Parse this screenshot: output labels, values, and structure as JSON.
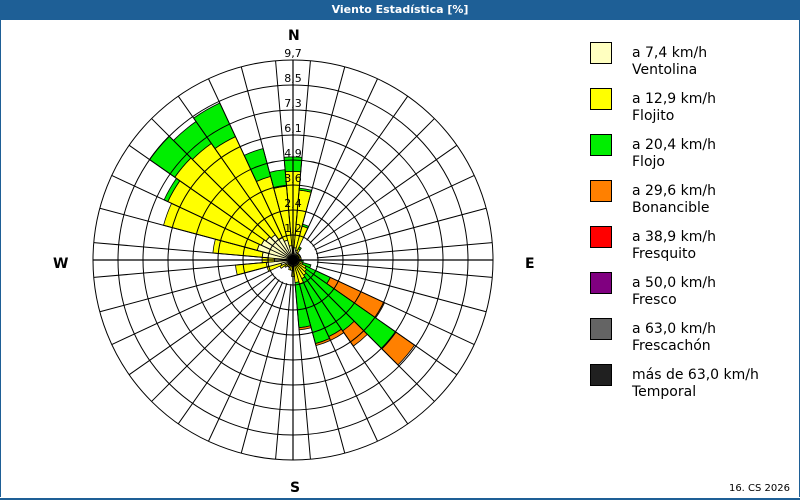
{
  "title": "Viento Estadística [%]",
  "footer": "16. CS 2026",
  "cardinals": {
    "n": "N",
    "e": "E",
    "s": "S",
    "w": "W"
  },
  "chart_data": {
    "type": "polar-bar",
    "title": "Viento Estadística [%]",
    "rmax": 9.7,
    "ring_labels": [
      "1,2",
      "2,4",
      "3,6",
      "4,9",
      "6,1",
      "7,3",
      "8,5",
      "9,7"
    ],
    "sector_width_deg": 10,
    "series_names": [
      "Ventolina",
      "Flojito",
      "Flojo",
      "Bonancible",
      "Fresquito",
      "Fresco",
      "Frescachón",
      "Temporal"
    ],
    "petals": [
      {
        "dir": 0,
        "cum": [
          0.6,
          4.3,
          5.0,
          5.0
        ]
      },
      {
        "dir": 10,
        "cum": [
          0.6,
          3.4,
          3.5,
          3.5
        ]
      },
      {
        "dir": 20,
        "cum": [
          0.5,
          1.7,
          1.8,
          1.8
        ]
      },
      {
        "dir": 30,
        "cum": [
          0.4,
          0.6,
          0.7,
          0.7
        ]
      },
      {
        "dir": 40,
        "cum": [
          0.3,
          0.4,
          0.4,
          0.4
        ]
      },
      {
        "dir": 50,
        "cum": [
          0.3,
          0.4,
          0.4,
          0.4
        ]
      },
      {
        "dir": 60,
        "cum": [
          0.3,
          0.4,
          0.4,
          0.4
        ]
      },
      {
        "dir": 70,
        "cum": [
          0.3,
          0.4,
          0.4,
          0.4
        ]
      },
      {
        "dir": 80,
        "cum": [
          0.3,
          0.4,
          0.4,
          0.4
        ]
      },
      {
        "dir": 90,
        "cum": [
          0.3,
          0.4,
          0.4,
          0.4
        ]
      },
      {
        "dir": 100,
        "cum": [
          0.3,
          0.4,
          0.5,
          0.5
        ]
      },
      {
        "dir": 110,
        "cum": [
          0.3,
          0.5,
          0.9,
          0.9
        ]
      },
      {
        "dir": 120,
        "cum": [
          0.3,
          0.7,
          2.0,
          4.9
        ]
      },
      {
        "dir": 130,
        "cum": [
          0.3,
          0.8,
          6.1,
          7.2
        ]
      },
      {
        "dir": 140,
        "cum": [
          0.3,
          0.9,
          4.2,
          5.1
        ]
      },
      {
        "dir": 150,
        "cum": [
          0.3,
          1.0,
          4.1,
          4.3
        ]
      },
      {
        "dir": 160,
        "cum": [
          0.3,
          1.2,
          4.2,
          4.3
        ]
      },
      {
        "dir": 170,
        "cum": [
          0.3,
          1.1,
          3.3,
          3.4
        ]
      },
      {
        "dir": 180,
        "cum": [
          0.3,
          0.8,
          0.8,
          0.8
        ]
      },
      {
        "dir": 190,
        "cum": [
          0.3,
          0.5,
          0.5,
          0.5
        ]
      },
      {
        "dir": 200,
        "cum": [
          0.3,
          0.5,
          0.5,
          0.5
        ]
      },
      {
        "dir": 210,
        "cum": [
          0.3,
          0.4,
          0.4,
          0.4
        ]
      },
      {
        "dir": 220,
        "cum": [
          0.3,
          0.4,
          0.4,
          0.4
        ]
      },
      {
        "dir": 230,
        "cum": [
          0.3,
          0.5,
          0.5,
          0.5
        ]
      },
      {
        "dir": 240,
        "cum": [
          0.4,
          0.7,
          0.7,
          0.7
        ]
      },
      {
        "dir": 250,
        "cum": [
          0.6,
          1.3,
          1.3,
          1.3
        ]
      },
      {
        "dir": 260,
        "cum": [
          1.3,
          2.8,
          2.8,
          2.8
        ]
      },
      {
        "dir": 270,
        "cum": [
          0.9,
          1.5,
          1.5,
          1.5
        ]
      },
      {
        "dir": 280,
        "cum": [
          1.5,
          3.9,
          3.9,
          3.9
        ]
      },
      {
        "dir": 290,
        "cum": [
          1.8,
          6.5,
          6.5,
          6.5
        ]
      },
      {
        "dir": 300,
        "cum": [
          1.7,
          6.7,
          6.9,
          6.9
        ]
      },
      {
        "dir": 310,
        "cum": [
          1.6,
          7.0,
          8.5,
          8.5
        ]
      },
      {
        "dir": 320,
        "cum": [
          1.5,
          6.9,
          8.2,
          8.2
        ]
      },
      {
        "dir": 330,
        "cum": [
          1.2,
          6.6,
          8.4,
          8.4
        ]
      },
      {
        "dir": 340,
        "cum": [
          1.0,
          4.2,
          5.6,
          5.6
        ]
      },
      {
        "dir": 350,
        "cum": [
          0.7,
          3.6,
          4.4,
          4.4
        ]
      }
    ]
  },
  "legend": [
    {
      "range": "a 7,4 km/h",
      "name": "Ventolina",
      "color": "#ffffc0"
    },
    {
      "range": "a 12,9 km/h",
      "name": "Flojito",
      "color": "#ffff00"
    },
    {
      "range": "a 20,4 km/h",
      "name": "Flojo",
      "color": "#00ee00"
    },
    {
      "range": "a 29,6 km/h",
      "name": "Bonancible",
      "color": "#ff8000"
    },
    {
      "range": "a 38,9 km/h",
      "name": "Fresquito",
      "color": "#ff0000"
    },
    {
      "range": "a 50,0 km/h",
      "name": "Fresco",
      "color": "#800080"
    },
    {
      "range": "a 63,0 km/h",
      "name": "Frescachón",
      "color": "#646464"
    },
    {
      "range": "más de 63,0 km/h",
      "name": "Temporal",
      "color": "#202020"
    }
  ]
}
